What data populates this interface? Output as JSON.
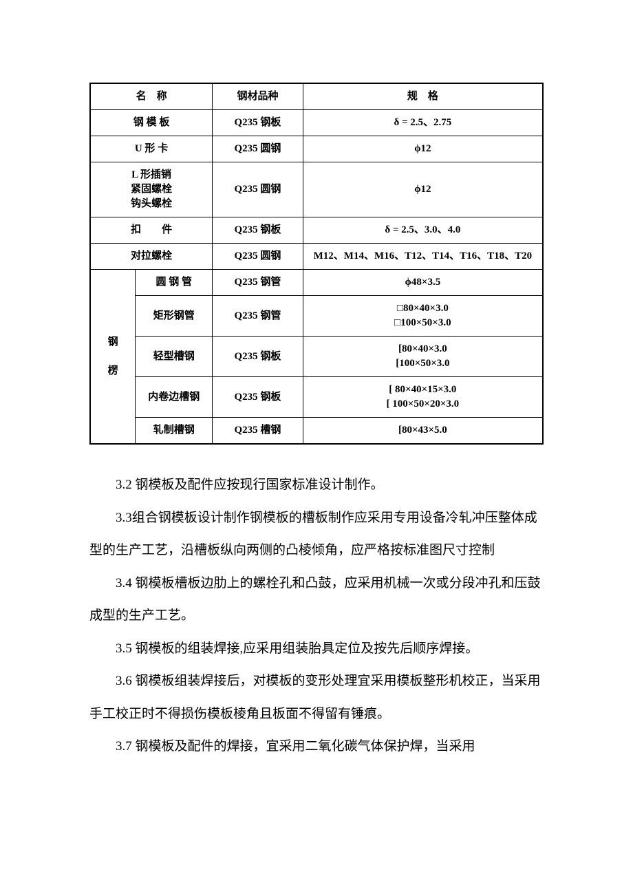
{
  "table": {
    "headers": {
      "name": "名　称",
      "material": "钢材品种",
      "spec": "规　格"
    },
    "rows": {
      "steel_template": {
        "name": "钢 模 板",
        "material": "Q235 钢板",
        "spec": "δ = 2.5、2.75"
      },
      "u_clip": {
        "name": "U 形 卡",
        "material": "Q235 圆钢",
        "spec": "ϕ12"
      },
      "l_pin": {
        "name_line1": "L 形插销",
        "name_line2": "紧固螺栓",
        "name_line3": "钩头螺栓",
        "material": "Q235 圆钢",
        "spec": "ϕ12"
      },
      "fastener": {
        "name": "扣　　件",
        "material": "Q235 钢板",
        "spec": "δ = 2.5、3.0、4.0"
      },
      "tie_bolt": {
        "name": "对拉螺栓",
        "material": "Q235 圆钢",
        "spec": "M12、M14、M16、T12、T14、T16、T18、T20"
      },
      "steel_leng": {
        "group_label": "钢\n\n楞",
        "round_pipe": {
          "name": "圆 钢 管",
          "material": "Q235 钢管",
          "spec": "ϕ48×3.5"
        },
        "rect_pipe": {
          "name": "矩形钢管",
          "material": "Q235 钢管",
          "spec_line1": "□80×40×3.0",
          "spec_line2": "□100×50×3.0"
        },
        "light_channel": {
          "name": "轻型槽钢",
          "material": "Q235 钢板",
          "spec_line1": "[80×40×3.0",
          "spec_line2": "[100×50×3.0"
        },
        "inner_channel": {
          "name": "内卷边槽钢",
          "material": "Q235 钢板",
          "spec_line1": "[  80×40×15×3.0",
          "spec_line2": "[  100×50×20×3.0"
        },
        "rolled_channel": {
          "name": "轧制槽钢",
          "material": "Q235 槽钢",
          "spec": "[80×43×5.0"
        }
      }
    }
  },
  "paragraphs": {
    "p1": "3.2 钢模板及配件应按现行国家标准设计制作。",
    "p2": "3.3组合钢模板设计制作钢模板的槽板制作应采用专用设备冷轧冲压整体成型的生产工艺，沿槽板纵向两侧的凸棱倾角，应严格按标准图尺寸控制",
    "p3": "3.4 钢模板槽板边肋上的螺栓孔和凸鼓，应采用机械一次或分段冲孔和压鼓成型的生产工艺。",
    "p4": "3.5 钢模板的组装焊接,应采用组装胎具定位及按先后顺序焊接。",
    "p5": "3.6 钢模板组装焊接后，对模板的变形处理宜采用模板整形机校正，当采用手工校正时不得损伤模板棱角且板面不得留有锤痕。",
    "p6": "3.7 钢模板及配件的焊接，宜采用二氧化碳气体保护焊，当采用"
  }
}
